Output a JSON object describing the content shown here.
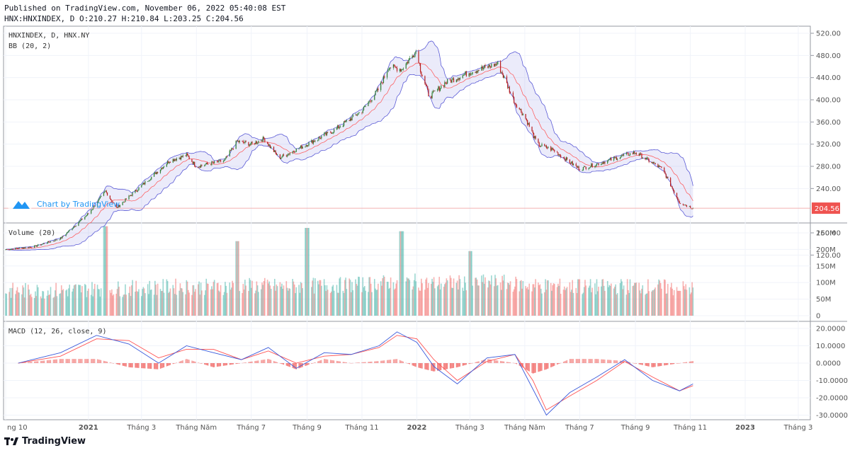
{
  "header": {
    "published": "Published on TradingView.com, November 06, 2022 05:40:08 EST",
    "ohlc": "HNX:HNXINDEX, D O:210.27 H:210.84 L:203.25 C:204.56"
  },
  "watermark": {
    "text": "Chart by TradingView"
  },
  "footer": {
    "brand": "TradingView"
  },
  "colors": {
    "up": "#26a69a",
    "down": "#ef5350",
    "candle_up": "#2e7d32",
    "candle_down": "#b71c1c",
    "bb_band": "#5b5bd6",
    "bb_basis": "#ff5252",
    "macd": "#3b5bdb",
    "signal": "#ff5252",
    "price_tag": "#ef5350"
  },
  "chart_data": [
    {
      "type": "line",
      "pane": "price",
      "label": "HNXINDEX, D, HNX.NY",
      "indicator_label": "BB (20, 2)",
      "last_price_label": "204.56",
      "y_ticks": [
        "520.00",
        "480.00",
        "440.00",
        "400.00",
        "360.00",
        "320.00",
        "280.00",
        "240.00",
        "160.00",
        "120.00"
      ],
      "ylim": [
        100,
        530
      ],
      "x": [
        "2020-10-01",
        "2020-11-01",
        "2020-12-01",
        "2021-01-01",
        "2021-01-20",
        "2021-02-01",
        "2021-03-01",
        "2021-04-01",
        "2021-04-20",
        "2021-05-01",
        "2021-06-01",
        "2021-06-15",
        "2021-07-01",
        "2021-07-15",
        "2021-08-01",
        "2021-09-01",
        "2021-10-01",
        "2021-11-01",
        "2021-11-20",
        "2021-12-01",
        "2021-12-15",
        "2022-01-01",
        "2022-01-05",
        "2022-01-15",
        "2022-02-01",
        "2022-03-01",
        "2022-04-01",
        "2022-04-20",
        "2022-05-01",
        "2022-05-15",
        "2022-06-01",
        "2022-07-01",
        "2022-08-01",
        "2022-08-20",
        "2022-09-01",
        "2022-10-01",
        "2022-10-20",
        "2022-11-04"
      ],
      "close": [
        130,
        135,
        150,
        195,
        235,
        205,
        245,
        290,
        300,
        280,
        290,
        325,
        320,
        330,
        295,
        320,
        345,
        380,
        420,
        460,
        455,
        490,
        455,
        405,
        430,
        450,
        465,
        395,
        370,
        320,
        310,
        275,
        290,
        300,
        305,
        275,
        215,
        204.56
      ]
    },
    {
      "type": "bar",
      "pane": "volume",
      "label": "Volume (20)",
      "y_ticks": [
        "250M",
        "200M",
        "150M",
        "100M",
        "50M",
        "0"
      ],
      "ylim": [
        0,
        270
      ],
      "unit": "M",
      "peaks": [
        {
          "x": "2021-01-20",
          "value": 270
        },
        {
          "x": "2021-06-15",
          "value": 225
        },
        {
          "x": "2021-09-01",
          "value": 265
        },
        {
          "x": "2021-12-15",
          "value": 255
        },
        {
          "x": "2022-03-01",
          "value": 195
        },
        {
          "x": "2022-07-01",
          "value": 110
        },
        {
          "x": "2022-10-20",
          "value": 75
        }
      ]
    },
    {
      "type": "line",
      "pane": "macd",
      "label": "MACD (12, 26, close, 9)",
      "y_ticks": [
        "20.0000",
        "10.0000",
        "0.0000",
        "-10.0000",
        "-20.0000",
        "-30.0000"
      ],
      "ylim": [
        -32,
        22
      ],
      "series": [
        {
          "name": "MACD",
          "x": [
            "2020-10-15",
            "2020-12-01",
            "2021-01-10",
            "2021-02-15",
            "2021-03-20",
            "2021-04-20",
            "2021-05-20",
            "2021-06-20",
            "2021-07-20",
            "2021-08-20",
            "2021-09-20",
            "2021-10-20",
            "2021-11-20",
            "2021-12-10",
            "2022-01-01",
            "2022-01-20",
            "2022-02-15",
            "2022-03-20",
            "2022-04-20",
            "2022-05-10",
            "2022-05-25",
            "2022-06-20",
            "2022-07-20",
            "2022-08-20",
            "2022-09-20",
            "2022-10-20",
            "2022-11-04"
          ],
          "values": [
            0,
            6,
            16,
            11,
            0,
            10,
            6,
            2,
            9,
            -3,
            6,
            5,
            10,
            18,
            12,
            -2,
            -12,
            3,
            5,
            -15,
            -30,
            -17,
            -8,
            2,
            -10,
            -16,
            -12
          ]
        },
        {
          "name": "Signal",
          "x": [
            "2020-10-15",
            "2020-12-01",
            "2021-01-10",
            "2021-02-15",
            "2021-03-20",
            "2021-04-20",
            "2021-05-20",
            "2021-06-20",
            "2021-07-20",
            "2021-08-20",
            "2021-09-20",
            "2021-10-20",
            "2021-11-20",
            "2021-12-10",
            "2022-01-01",
            "2022-01-20",
            "2022-02-15",
            "2022-03-20",
            "2022-04-20",
            "2022-05-10",
            "2022-05-25",
            "2022-06-20",
            "2022-07-20",
            "2022-08-20",
            "2022-09-20",
            "2022-10-20",
            "2022-11-04"
          ],
          "values": [
            0,
            4,
            14,
            13,
            3,
            8,
            8,
            2,
            7,
            0,
            4,
            5,
            9,
            16,
            14,
            2,
            -10,
            1,
            5,
            -10,
            -27,
            -19,
            -10,
            1,
            -8,
            -16,
            -13
          ]
        }
      ]
    }
  ],
  "x_axis": {
    "labels": [
      "ng 10",
      "2021",
      "Tháng 3",
      "Tháng Năm",
      "Tháng 7",
      "Tháng 9",
      "Tháng 11",
      "2022",
      "Tháng 3",
      "Tháng Năm",
      "Tháng 7",
      "Tháng 9",
      "Tháng 11",
      "2023",
      "Tháng 3"
    ],
    "bold": [
      "2021",
      "2022",
      "2023"
    ],
    "dates": [
      "2020-10-01",
      "2021-01-01",
      "2021-03-01",
      "2021-05-01",
      "2021-07-01",
      "2021-09-01",
      "2021-11-01",
      "2022-01-01",
      "2022-03-01",
      "2022-05-01",
      "2022-07-01",
      "2022-09-01",
      "2022-11-01",
      "2023-01-01",
      "2023-03-01"
    ]
  }
}
